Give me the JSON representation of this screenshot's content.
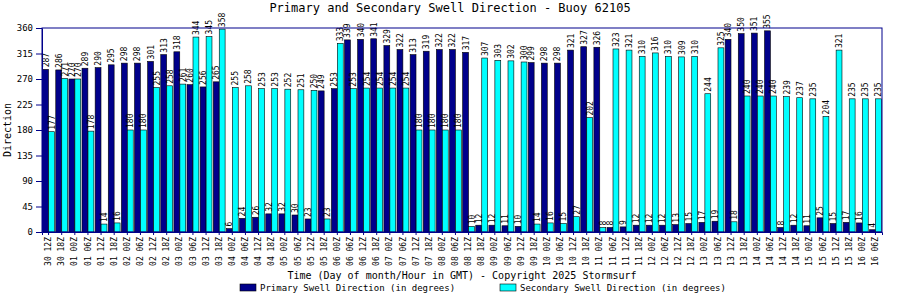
{
  "chart_data": {
    "type": "bar",
    "title": "Primary and Secondary Swell Direction - Buoy 62105",
    "x_label": "Time (Day of month/Hour in GMT) - Copyright 2025 Stormsurf",
    "y_label": "Direction",
    "categories": [
      "30 12Z",
      "30 18Z",
      "01 00Z",
      "01 06Z",
      "01 12Z",
      "01 18Z",
      "02 00Z",
      "02 06Z",
      "02 12Z",
      "02 18Z",
      "03 00Z",
      "03 06Z",
      "03 12Z",
      "03 18Z",
      "04 00Z",
      "04 06Z",
      "04 12Z",
      "04 18Z",
      "05 00Z",
      "05 06Z",
      "05 12Z",
      "05 18Z",
      "06 00Z",
      "06 06Z",
      "06 12Z",
      "06 18Z",
      "07 00Z",
      "07 06Z",
      "07 12Z",
      "07 18Z",
      "08 00Z",
      "08 06Z",
      "08 12Z",
      "08 18Z",
      "09 00Z",
      "09 06Z",
      "09 12Z",
      "09 18Z",
      "10 00Z",
      "10 06Z",
      "10 12Z",
      "10 18Z",
      "11 00Z",
      "11 06Z",
      "11 12Z",
      "11 18Z",
      "12 00Z",
      "12 06Z",
      "12 12Z",
      "12 18Z",
      "13 00Z",
      "13 06Z",
      "13 12Z",
      "13 18Z",
      "14 00Z",
      "14 06Z",
      "14 12Z",
      "14 18Z",
      "15 00Z",
      "15 06Z",
      "15 12Z",
      "15 18Z",
      "16 00Z",
      "16 06Z"
    ],
    "series": [
      {
        "name": "Primary Swell Direction (in degrees)",
        "color": "#00008b",
        "values": [
          287,
          286,
          270,
          289,
          290,
          295,
          298,
          298,
          301,
          313,
          318,
          260,
          256,
          265,
          6,
          24,
          26,
          32,
          32,
          30,
          23,
          249,
          253,
          339,
          340,
          341,
          329,
          322,
          313,
          319,
          322,
          322,
          317,
          12,
          12,
          11,
          10,
          299,
          298,
          298,
          321,
          327,
          326,
          8,
          9,
          12,
          12,
          12,
          13,
          15,
          17,
          19,
          340,
          350,
          351,
          355,
          8,
          12,
          11,
          25,
          15,
          17,
          16,
          4
        ]
      },
      {
        "name": "Secondary Swell Direction (in degrees)",
        "color": "#00ffff",
        "values": [
          177,
          271,
          270,
          178,
          14,
          16,
          180,
          180,
          255,
          258,
          261,
          344,
          345,
          358,
          255,
          258,
          253,
          253,
          252,
          251,
          250,
          23,
          333,
          253,
          254,
          254,
          254,
          254,
          180,
          180,
          180,
          180,
          10,
          307,
          303,
          302,
          300,
          14,
          16,
          15,
          27,
          202,
          8,
          323,
          321,
          310,
          316,
          310,
          309,
          310,
          244,
          325,
          18,
          240,
          240,
          240,
          239,
          237,
          235,
          204,
          321,
          235,
          235,
          235
        ]
      }
    ],
    "ylim": [
      0,
      360
    ],
    "yticks": [
      0,
      45,
      90,
      135,
      180,
      225,
      270,
      315,
      360
    ],
    "data_labels": true
  }
}
